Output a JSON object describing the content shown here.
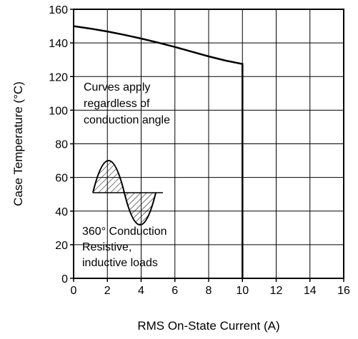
{
  "chart_data": {
    "type": "line",
    "xlabel": "RMS On-State Current  (A)",
    "ylabel": "Case Temperature  (°C)",
    "xlim": [
      0,
      16
    ],
    "ylim": [
      0,
      160
    ],
    "x_ticks": [
      0,
      2,
      4,
      6,
      8,
      10,
      12,
      14,
      16
    ],
    "y_ticks": [
      0,
      20,
      40,
      60,
      80,
      100,
      120,
      140,
      160
    ],
    "grid": true,
    "series": [
      {
        "x": [
          0,
          1,
          2,
          3,
          4,
          5,
          6,
          7,
          8,
          9,
          10,
          10,
          10
        ],
        "y": [
          150,
          148.5,
          146.8,
          144.8,
          142.6,
          140.2,
          137.6,
          134.8,
          132,
          129.5,
          127.5,
          60,
          0
        ]
      }
    ],
    "annotations": [
      {
        "id": "note1",
        "lines": [
          "Curves apply",
          "regardless of",
          "conduction angle"
        ]
      },
      {
        "id": "note2",
        "lines": [
          "360° Conduction",
          "Resistive,",
          "inductive loads"
        ]
      }
    ]
  }
}
